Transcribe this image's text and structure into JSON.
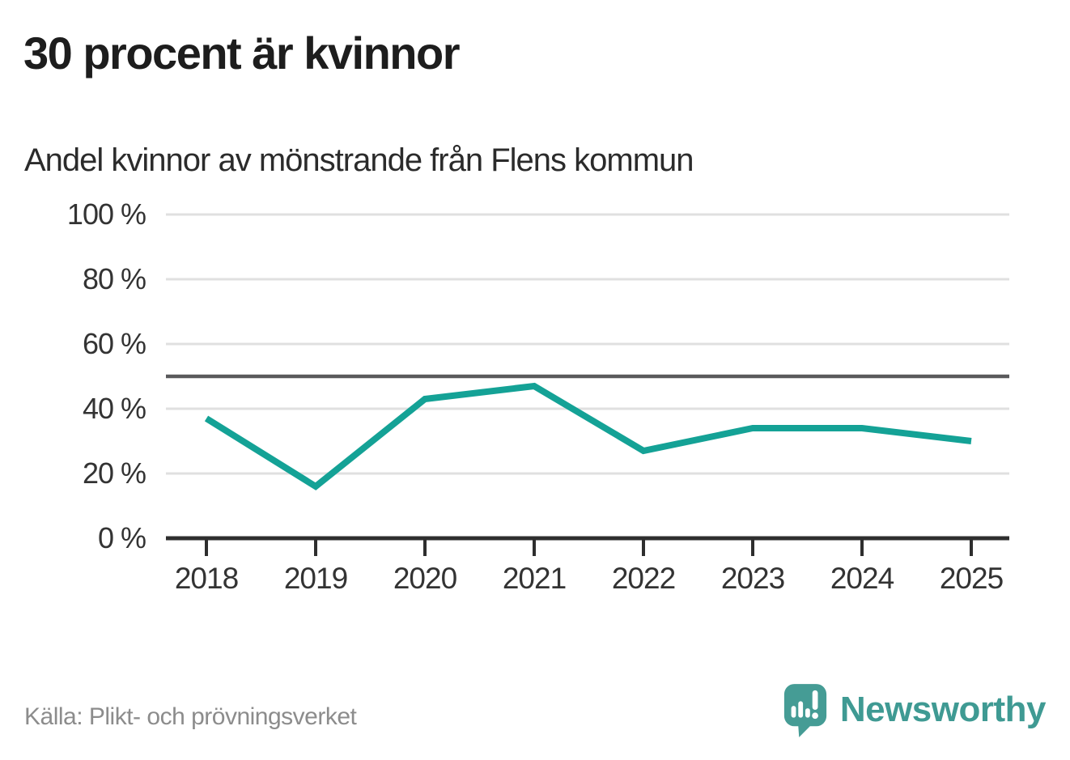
{
  "header": {
    "title": "30 procent är kvinnor",
    "subtitle": "Andel kvinnor av mönstrande från Flens kommun"
  },
  "chart_data": {
    "type": "line",
    "categories": [
      "2018",
      "2019",
      "2020",
      "2021",
      "2022",
      "2023",
      "2024",
      "2025"
    ],
    "series": [
      {
        "name": "Andel kvinnor av mönstrande",
        "values": [
          37,
          16,
          43,
          47,
          27,
          34,
          34,
          30
        ]
      }
    ],
    "title": "30 procent är kvinnor",
    "subtitle": "Andel kvinnor av mönstrande från Flens kommun",
    "xlabel": "",
    "ylabel": "",
    "ylim": [
      0,
      100
    ],
    "yticks": [
      0,
      20,
      40,
      60,
      80,
      100
    ],
    "ytick_labels": [
      "0 %",
      "20 %",
      "40 %",
      "60 %",
      "80 %",
      "100 %"
    ],
    "reference_line": 50,
    "grid": true,
    "legend_position": "none",
    "colors": {
      "line": "#14a296",
      "reference_line": "#5a5a5c",
      "grid": "#e0e0e0",
      "axis": "#2e2e2e",
      "tick_text": "#333333"
    }
  },
  "footer": {
    "source": "Källa: Plikt- och prövningsverket",
    "brand": "Newsworthy",
    "brand_color": "#3f9a93",
    "logo_color": "#459c95"
  }
}
